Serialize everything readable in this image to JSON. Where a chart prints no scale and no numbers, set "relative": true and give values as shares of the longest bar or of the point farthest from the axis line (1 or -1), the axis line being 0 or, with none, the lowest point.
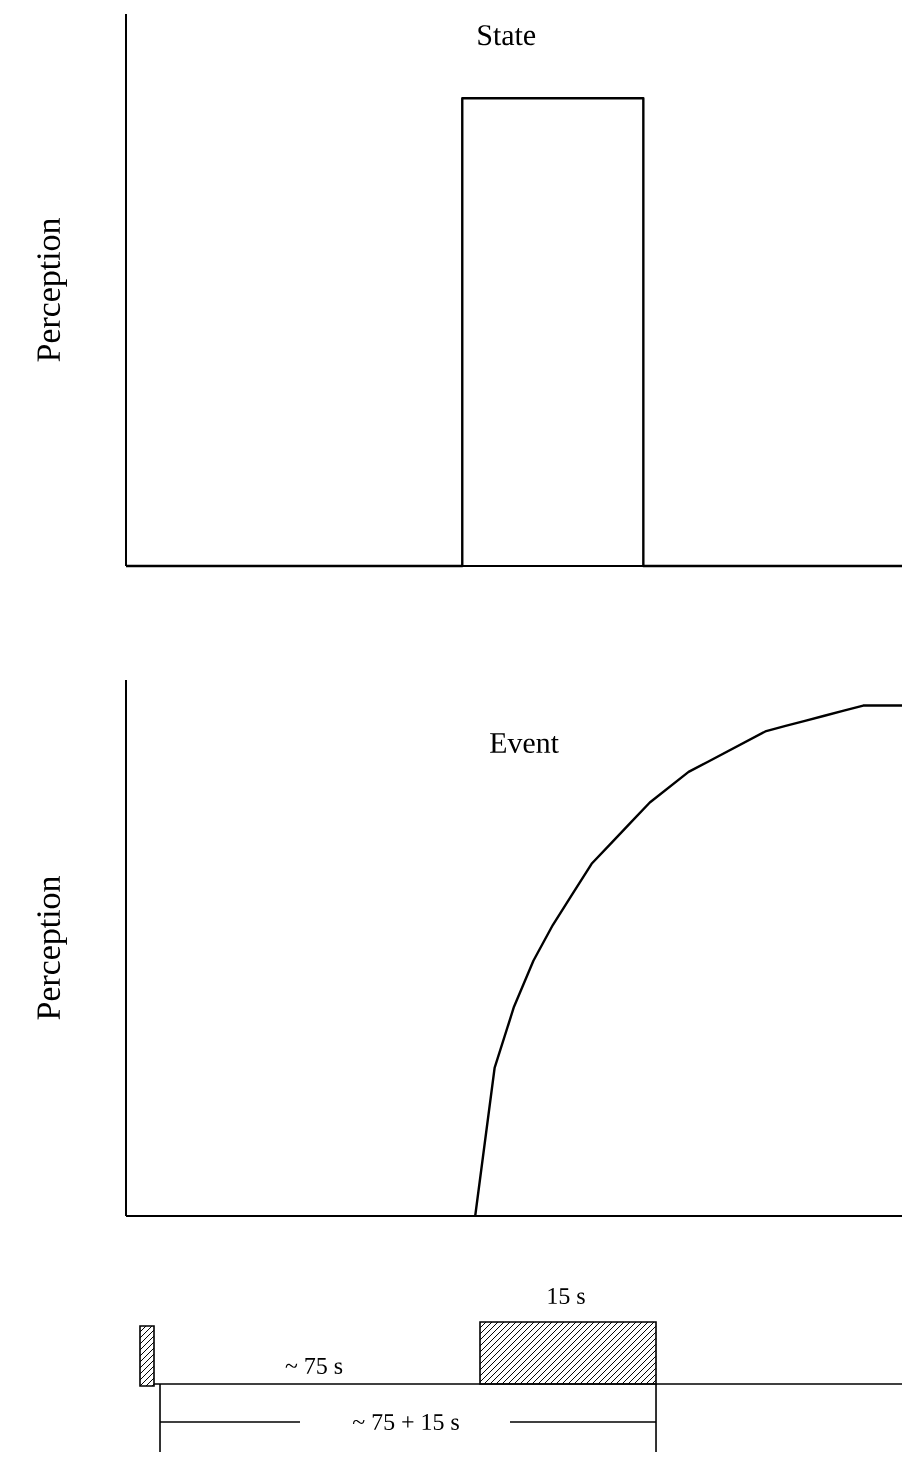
{
  "chart_data": [
    {
      "type": "step",
      "title": "State",
      "ylabel": "Perception",
      "relative": true,
      "categories": [
        null,
        null,
        null,
        null,
        null,
        null,
        null,
        null,
        null,
        null,
        null,
        null,
        null,
        null,
        null,
        null,
        null,
        null,
        null,
        null,
        null,
        null,
        null,
        null,
        null,
        null,
        null,
        null,
        null,
        null,
        null
      ],
      "series": [
        {
          "color": "#000000",
          "values": [
            0,
            0,
            0,
            0,
            0,
            0,
            0,
            0,
            0,
            0,
            0,
            0,
            0,
            1,
            1,
            1,
            1,
            1,
            1,
            1,
            0,
            0,
            0,
            0,
            0,
            0,
            0,
            0,
            0,
            0,
            0
          ]
        }
      ]
    },
    {
      "type": "line",
      "title": "Event",
      "ylabel": "Perception",
      "relative": true,
      "categories": [
        null,
        null,
        null,
        null,
        null,
        null,
        null,
        null,
        null,
        null,
        null,
        null,
        null,
        null,
        null,
        null,
        null,
        null,
        null,
        null,
        null,
        null,
        null,
        null,
        null,
        null,
        null,
        null,
        null,
        null,
        null,
        null,
        null,
        null,
        null,
        null,
        null,
        null,
        null,
        null,
        null
      ],
      "series": [
        {
          "color": "#000000",
          "values": [
            null,
            null,
            null,
            null,
            null,
            null,
            null,
            null,
            null,
            null,
            null,
            null,
            null,
            null,
            null,
            null,
            null,
            null,
            0,
            0.29,
            0.41,
            0.5,
            0.57,
            0.63,
            0.69,
            0.73,
            0.77,
            0.81,
            0.84,
            0.87,
            0.89,
            0.91,
            0.93,
            0.95,
            0.96,
            0.97,
            0.98,
            0.99,
            1.0,
            1.0,
            1.0
          ]
        }
      ]
    },
    {
      "type": "other",
      "annotations": [
        "15 s",
        "~ 75 s",
        "~ 75 + 15 s"
      ]
    }
  ]
}
